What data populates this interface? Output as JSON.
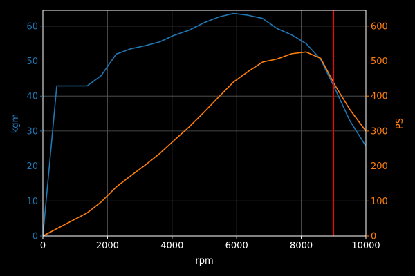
{
  "chart_data": {
    "type": "line",
    "title": "",
    "xlabel": "rpm",
    "ylabel_left": "kgm",
    "ylabel_right": "PS",
    "xlim": [
      0,
      10000
    ],
    "ylim_left": [
      0,
      64.5
    ],
    "ylim_right": [
      0,
      645
    ],
    "x_ticks": [
      0,
      2000,
      4000,
      6000,
      8000,
      10000
    ],
    "y_ticks_left": [
      0,
      10,
      20,
      30,
      40,
      50,
      60
    ],
    "y_ticks_right": [
      0,
      100,
      200,
      300,
      400,
      500,
      600
    ],
    "grid": true,
    "legend": "none",
    "colors": {
      "background": "#000000",
      "frame": "#ffffff",
      "grid": "#5a5a5a",
      "torque": "#1f77b4",
      "power": "#ff7f0e",
      "redline": "#ff0000",
      "x_text": "#ffffff"
    },
    "series": [
      {
        "axis": "left",
        "x": [
          0,
          430,
          1370,
          1800,
          2270,
          2720,
          3170,
          3620,
          4070,
          4520,
          5000,
          5450,
          5900,
          6350,
          6800,
          7250,
          7700,
          8150,
          8600,
          9050,
          9500,
          10000
        ],
        "values": [
          0,
          42.9,
          42.9,
          45.8,
          52.0,
          53.5,
          54.4,
          55.5,
          57.4,
          58.8,
          61.0,
          62.6,
          63.6,
          63.1,
          62.2,
          59.3,
          57.5,
          55.0,
          50.5,
          42.0,
          33.0,
          25.7
        ]
      },
      {
        "axis": "right",
        "x": [
          0,
          1370,
          1800,
          2270,
          2720,
          3170,
          3620,
          4070,
          4520,
          5000,
          5450,
          5900,
          6350,
          6800,
          7250,
          7700,
          8150,
          8600,
          9050,
          9500,
          10000
        ],
        "values": [
          0,
          66,
          97,
          140,
          172,
          203,
          236,
          274,
          311,
          355,
          398,
          440,
          470,
          497,
          506,
          521,
          526,
          508,
          430,
          362,
          300
        ]
      }
    ],
    "redline_x": 9000
  }
}
